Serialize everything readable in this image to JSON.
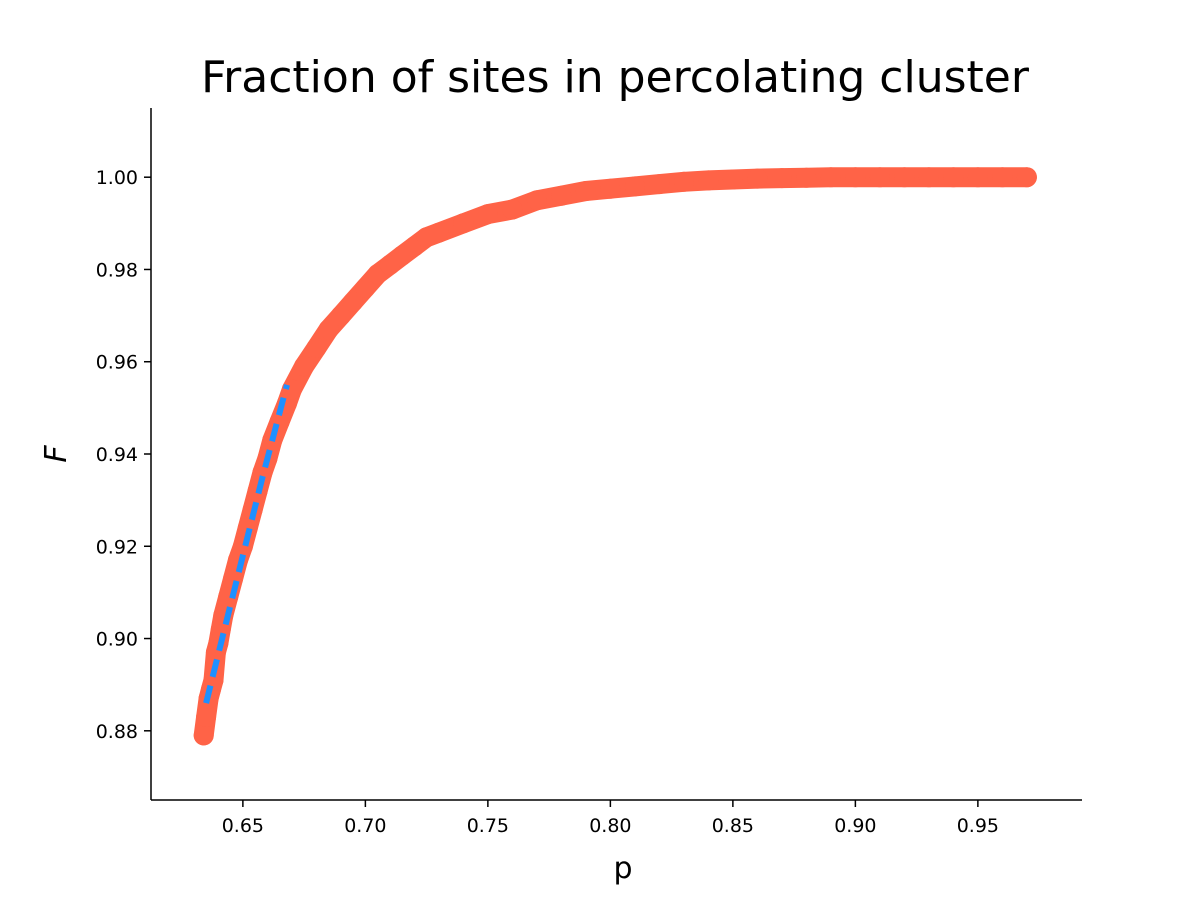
{
  "chart_data": {
    "type": "scatter",
    "title": "Fraction of sites in percolating cluster",
    "xlabel": "p",
    "ylabel": "F",
    "xlim": [
      0.6125,
      0.9925
    ],
    "ylim": [
      0.865,
      1.015
    ],
    "xticks": [
      "0.65",
      "0.70",
      "0.75",
      "0.80",
      "0.85",
      "0.90",
      "0.95"
    ],
    "yticks": [
      "0.88",
      "0.90",
      "0.92",
      "0.94",
      "0.96",
      "0.98",
      "1.00"
    ],
    "grid": false,
    "spines": [
      "left",
      "bottom"
    ],
    "series": [
      {
        "kind": "scatter",
        "color": "#FF6347",
        "points": [
          [
            0.634,
            0.879
          ],
          [
            0.635,
            0.883
          ],
          [
            0.636,
            0.887
          ],
          [
            0.637,
            0.889
          ],
          [
            0.638,
            0.891
          ],
          [
            0.639,
            0.897
          ],
          [
            0.64,
            0.899
          ],
          [
            0.641,
            0.902
          ],
          [
            0.642,
            0.905
          ],
          [
            0.644,
            0.909
          ],
          [
            0.646,
            0.913
          ],
          [
            0.648,
            0.917
          ],
          [
            0.65,
            0.92
          ],
          [
            0.652,
            0.924
          ],
          [
            0.654,
            0.928
          ],
          [
            0.656,
            0.932
          ],
          [
            0.658,
            0.936
          ],
          [
            0.66,
            0.939
          ],
          [
            0.662,
            0.943
          ],
          [
            0.665,
            0.947
          ],
          [
            0.668,
            0.951
          ],
          [
            0.67,
            0.954
          ],
          [
            0.675,
            0.959
          ],
          [
            0.68,
            0.963
          ],
          [
            0.685,
            0.967
          ],
          [
            0.69,
            0.97
          ],
          [
            0.695,
            0.973
          ],
          [
            0.7,
            0.976
          ],
          [
            0.705,
            0.979
          ],
          [
            0.71,
            0.981
          ],
          [
            0.715,
            0.983
          ],
          [
            0.72,
            0.985
          ],
          [
            0.725,
            0.987
          ],
          [
            0.73,
            0.988
          ],
          [
            0.74,
            0.99
          ],
          [
            0.75,
            0.992
          ],
          [
            0.76,
            0.993
          ],
          [
            0.77,
            0.995
          ],
          [
            0.78,
            0.996
          ],
          [
            0.79,
            0.997
          ],
          [
            0.8,
            0.9975
          ],
          [
            0.81,
            0.998
          ],
          [
            0.82,
            0.9985
          ],
          [
            0.83,
            0.999
          ],
          [
            0.84,
            0.9993
          ],
          [
            0.85,
            0.9995
          ],
          [
            0.86,
            0.9997
          ],
          [
            0.87,
            0.9998
          ],
          [
            0.88,
            0.9999
          ],
          [
            0.89,
            1.0
          ],
          [
            0.9,
            1.0
          ],
          [
            0.91,
            1.0
          ],
          [
            0.92,
            1.0
          ],
          [
            0.93,
            1.0
          ],
          [
            0.94,
            1.0
          ],
          [
            0.95,
            1.0
          ],
          [
            0.96,
            1.0
          ],
          [
            0.97,
            1.0
          ]
        ]
      },
      {
        "kind": "line",
        "style": "dashed",
        "color": "#1E90FF",
        "points": [
          [
            0.635,
            0.886
          ],
          [
            0.642,
            0.901
          ],
          [
            0.65,
            0.918
          ],
          [
            0.658,
            0.935
          ],
          [
            0.664,
            0.947
          ],
          [
            0.668,
            0.955
          ]
        ]
      }
    ]
  }
}
